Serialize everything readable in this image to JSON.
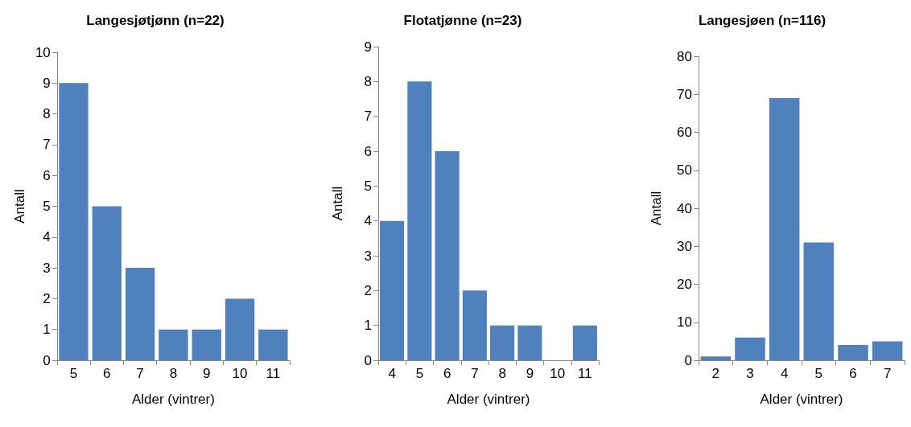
{
  "chart_data": [
    {
      "type": "bar",
      "title": "Langesjøtjønn (n=22)",
      "xlabel": "Alder (vintrer)",
      "ylabel": "Antall",
      "categories": [
        "5",
        "6",
        "7",
        "8",
        "9",
        "10",
        "11"
      ],
      "values": [
        9,
        5,
        3,
        1,
        1,
        2,
        1
      ],
      "color": "#4f81bd",
      "ylim": [
        0,
        10
      ],
      "yticks": [
        0,
        1,
        2,
        3,
        4,
        5,
        6,
        7,
        8,
        9,
        10
      ]
    },
    {
      "type": "bar",
      "title": "Flotatjønne (n=23)",
      "xlabel": "Alder (vintrer)",
      "ylabel": "Antall",
      "categories": [
        "4",
        "5",
        "6",
        "7",
        "8",
        "9",
        "10",
        "11"
      ],
      "values": [
        4,
        8,
        6,
        2,
        1,
        1,
        0,
        1
      ],
      "color": "#4f81bd",
      "ylim": [
        0,
        9
      ],
      "yticks": [
        0,
        1,
        2,
        3,
        4,
        5,
        6,
        7,
        8,
        9
      ]
    },
    {
      "type": "bar",
      "title": "Langesjøen (n=116)",
      "xlabel": "Alder (vintrer)",
      "ylabel": "Antall",
      "categories": [
        "2",
        "3",
        "4",
        "5",
        "6",
        "7"
      ],
      "values": [
        1,
        6,
        69,
        31,
        4,
        5
      ],
      "color": "#4f81bd",
      "ylim": [
        0,
        80
      ],
      "yticks": [
        0,
        10,
        20,
        30,
        40,
        50,
        60,
        70,
        80
      ]
    }
  ]
}
